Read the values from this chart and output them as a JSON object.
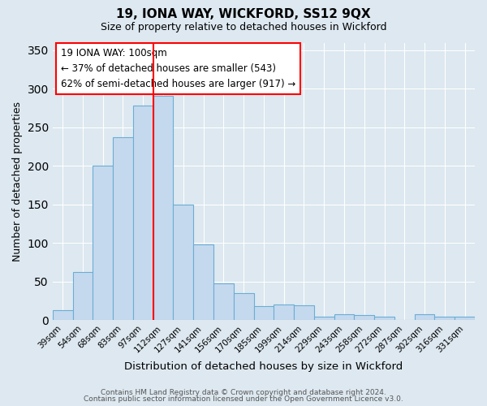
{
  "title1": "19, IONA WAY, WICKFORD, SS12 9QX",
  "title2": "Size of property relative to detached houses in Wickford",
  "xlabel": "Distribution of detached houses by size in Wickford",
  "ylabel": "Number of detached properties",
  "categories": [
    "39sqm",
    "54sqm",
    "68sqm",
    "83sqm",
    "97sqm",
    "112sqm",
    "127sqm",
    "141sqm",
    "156sqm",
    "170sqm",
    "185sqm",
    "199sqm",
    "214sqm",
    "229sqm",
    "243sqm",
    "258sqm",
    "272sqm",
    "287sqm",
    "302sqm",
    "316sqm",
    "331sqm"
  ],
  "values": [
    13,
    63,
    200,
    237,
    278,
    291,
    150,
    98,
    48,
    35,
    18,
    20,
    19,
    5,
    8,
    7,
    5,
    0,
    8,
    5,
    5
  ],
  "bar_color": "#c5d9ee",
  "bar_edge_color": "#6aadd5",
  "annotation_title": "19 IONA WAY: 100sqm",
  "annotation_line1": "← 37% of detached houses are smaller (543)",
  "annotation_line2": "62% of semi-detached houses are larger (917) →",
  "vline_color": "red",
  "vline_x_index": 4.5,
  "ylim": [
    0,
    360
  ],
  "yticks": [
    0,
    50,
    100,
    150,
    200,
    250,
    300,
    350
  ],
  "footer1": "Contains HM Land Registry data © Crown copyright and database right 2024.",
  "footer2": "Contains public sector information licensed under the Open Government Licence v3.0.",
  "bg_color": "#dde8f0",
  "plot_bg_color": "#dde8f0"
}
